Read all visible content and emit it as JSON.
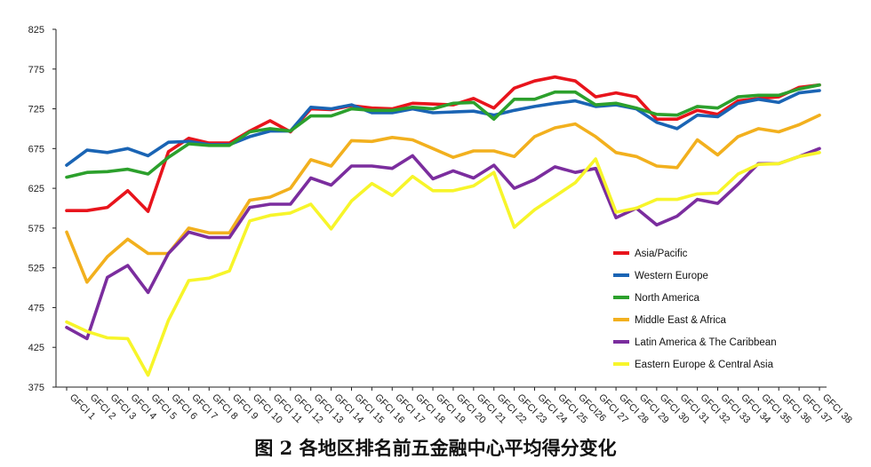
{
  "chart_data": {
    "type": "line",
    "title": "",
    "xlabel": "",
    "ylabel": "",
    "ylim": [
      375,
      825
    ],
    "yticks": [
      375,
      425,
      475,
      525,
      575,
      625,
      675,
      725,
      775,
      825
    ],
    "categories": [
      "GFCI 1",
      "GFCI 2",
      "GFCI 3",
      "GFCI 4",
      "GFCI 5",
      "GFCI 6",
      "GFCI 7",
      "GFCI 8",
      "GFCI 9",
      "GFCI 10",
      "GFCI 11",
      "GFCI 12",
      "GFCI 13",
      "GFCI 14",
      "GFCI 15",
      "GFCI 16",
      "GFCI 17",
      "GFCI 18",
      "GFCI 19",
      "GFCI 20",
      "GFCI 21",
      "GFCI 22",
      "GFCI 23",
      "GFCI 24",
      "GFCI 25",
      "GFCI26",
      "GFCI 27",
      "GFCI 28",
      "GFCI 29",
      "GFCI 30",
      "GFCI 31",
      "GFCI 32",
      "GFCI 33",
      "GFCI 34",
      "GFCI 35",
      "GFCI 36",
      "GFCI 37",
      "GFCI 38"
    ],
    "legend_position": "right",
    "series": [
      {
        "name": "Asia/Pacific",
        "color": "#e8141c",
        "values": [
          597,
          597,
          601,
          622,
          596,
          671,
          688,
          682,
          682,
          697,
          710,
          696,
          725,
          724,
          729,
          726,
          725,
          732,
          731,
          730,
          738,
          726,
          751,
          760,
          765,
          760,
          740,
          745,
          740,
          712,
          712,
          723,
          718,
          735,
          738,
          740,
          752,
          755
        ]
      },
      {
        "name": "Western Europe",
        "color": "#1a64b4",
        "values": [
          654,
          673,
          670,
          675,
          666,
          683,
          684,
          680,
          680,
          690,
          697,
          697,
          727,
          725,
          730,
          720,
          720,
          725,
          720,
          721,
          722,
          717,
          723,
          728,
          732,
          735,
          728,
          730,
          725,
          708,
          700,
          717,
          715,
          732,
          737,
          733,
          745,
          748
        ]
      },
      {
        "name": "North America",
        "color": "#2ca02c",
        "values": [
          639,
          645,
          646,
          649,
          643,
          664,
          681,
          679,
          679,
          696,
          700,
          697,
          716,
          716,
          725,
          723,
          723,
          727,
          725,
          732,
          733,
          712,
          737,
          737,
          746,
          746,
          730,
          732,
          726,
          718,
          717,
          728,
          726,
          740,
          742,
          742,
          750,
          755
        ]
      },
      {
        "name": "Middle East & Africa",
        "color": "#f2b01e",
        "values": [
          570,
          507,
          539,
          561,
          543,
          543,
          575,
          569,
          569,
          610,
          614,
          625,
          661,
          653,
          685,
          684,
          689,
          686,
          675,
          664,
          672,
          672,
          665,
          690,
          701,
          706,
          690,
          670,
          665,
          653,
          651,
          686,
          667,
          690,
          700,
          696,
          705,
          717
        ]
      },
      {
        "name": "Latin America & The Caribbean",
        "color": "#7b2d9e",
        "values": [
          450,
          436,
          513,
          528,
          494,
          543,
          570,
          563,
          563,
          601,
          605,
          605,
          638,
          629,
          653,
          653,
          650,
          666,
          637,
          647,
          638,
          654,
          625,
          636,
          652,
          645,
          650,
          588,
          600,
          579,
          590,
          611,
          606,
          630,
          656,
          656,
          665,
          675
        ]
      },
      {
        "name": "Eastern Europe & Central Asia",
        "color": "#f7f52a",
        "values": [
          457,
          445,
          437,
          436,
          390,
          459,
          509,
          512,
          521,
          584,
          591,
          594,
          605,
          574,
          609,
          631,
          616,
          640,
          622,
          622,
          628,
          645,
          576,
          598,
          615,
          632,
          662,
          595,
          600,
          611,
          611,
          618,
          619,
          643,
          655,
          656,
          665,
          670
        ]
      }
    ]
  },
  "caption": "图 2  各地区排名前五金融中心平均得分变化"
}
